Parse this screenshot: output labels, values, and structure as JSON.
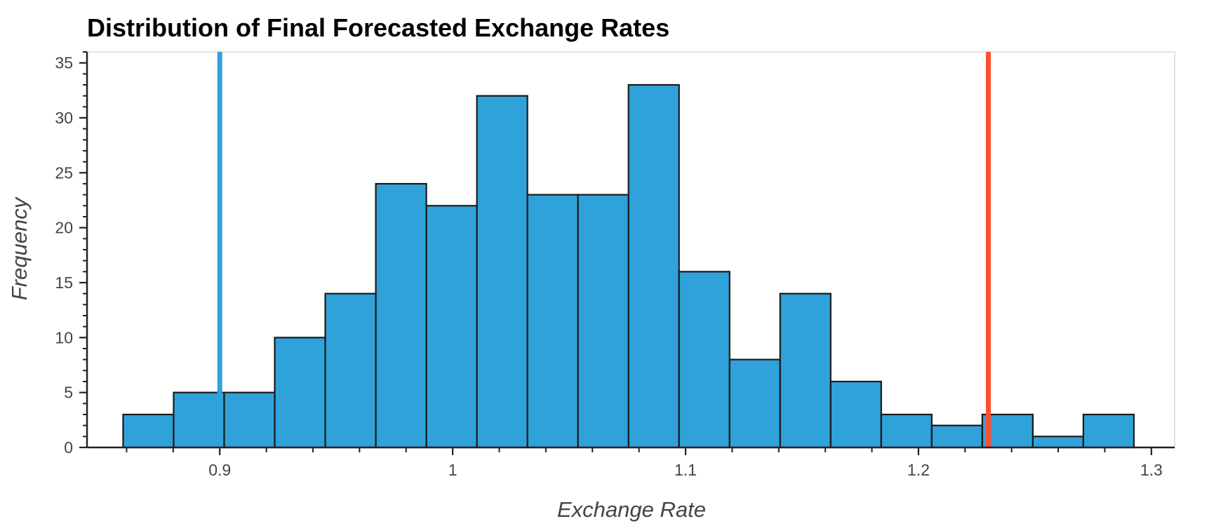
{
  "chart_data": {
    "type": "bar",
    "title": "Distribution of Final Forecasted Exchange Rates",
    "xlabel": "Exchange Rate",
    "ylabel": "Frequency",
    "xlim": [
      0.843,
      1.31
    ],
    "ylim": [
      0,
      36
    ],
    "x_ticks": [
      0.9,
      1.0,
      1.1,
      1.2,
      1.3
    ],
    "x_tick_labels": [
      "0.9",
      "1",
      "1.1",
      "1.2",
      "1.3"
    ],
    "y_ticks": [
      0,
      5,
      10,
      15,
      20,
      25,
      30,
      35
    ],
    "y_tick_labels": [
      "0",
      "5",
      "10",
      "15",
      "20",
      "25",
      "30",
      "35"
    ],
    "bin_edges": [
      0.8585,
      0.8802,
      0.9019,
      0.9236,
      0.9453,
      0.967,
      0.9887,
      1.0104,
      1.0321,
      1.0538,
      1.0755,
      1.0972,
      1.1189,
      1.1406,
      1.1623,
      1.184,
      1.2057,
      1.2274,
      1.2491,
      1.2708,
      1.2925
    ],
    "values": [
      3,
      5,
      5,
      10,
      14,
      24,
      22,
      32,
      23,
      23,
      33,
      16,
      8,
      14,
      6,
      3,
      2,
      3,
      1,
      3
    ],
    "bar_color": "#30a2da",
    "bar_edge_color": "#1a1a1a",
    "reference_lines": [
      {
        "x": 0.9,
        "color": "#30a2da"
      },
      {
        "x": 1.23,
        "color": "#fc4f30"
      }
    ],
    "grid": false
  }
}
